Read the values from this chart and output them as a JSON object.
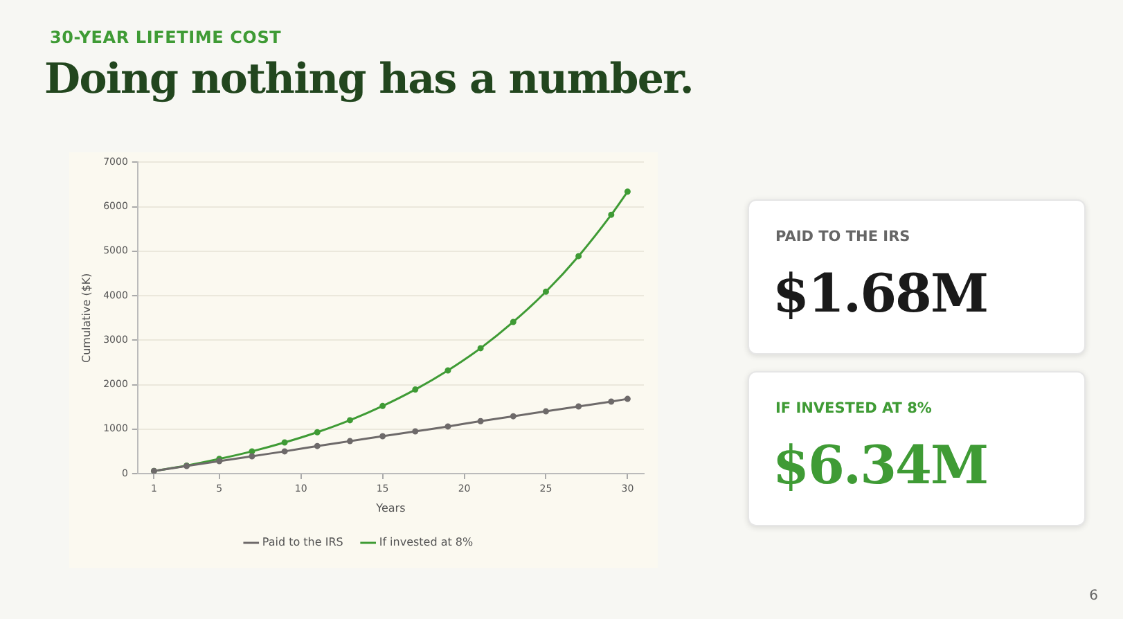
{
  "chart_data": [
    {
      "type": "line",
      "title": "Doing nothing has a number.",
      "subtitle": "30-YEAR LIFETIME COST",
      "xlabel": "Years",
      "ylabel": "Cumulative ($K)",
      "x": [
        1,
        3,
        5,
        7,
        9,
        11,
        13,
        15,
        17,
        19,
        21,
        23,
        25,
        27,
        29,
        30
      ],
      "series": [
        {
          "name": "Paid to the IRS",
          "color": "#6e6a6a",
          "values": [
            60,
            170,
            280,
            390,
            500,
            620,
            730,
            840,
            950,
            1060,
            1180,
            1290,
            1400,
            1510,
            1620,
            1680
          ]
        },
        {
          "name": "If invested at 8%",
          "color": "#3f9b35",
          "values": [
            60,
            180,
            330,
            500,
            700,
            930,
            1200,
            1520,
            1890,
            2320,
            2820,
            3410,
            4090,
            4890,
            5820,
            6340
          ]
        }
      ],
      "xlim": [
        0,
        31
      ],
      "xticks": [
        1,
        5,
        10,
        15,
        20,
        25,
        30
      ],
      "ylim": [
        0,
        7000
      ],
      "yticks": [
        0,
        1000,
        2000,
        3000,
        4000,
        5000,
        6000,
        7000
      ],
      "grid": "y",
      "legend": "bottom",
      "marker": "circle",
      "line_style": "solid",
      "annotations": [
        "6"
      ]
    },
    {
      "type": "other",
      "title": "PAID TO THE IRS",
      "annotations": [
        "$1.68M"
      ],
      "color": "#1a1a1a"
    },
    {
      "type": "other",
      "title": "IF INVESTED AT 8%",
      "annotations": [
        "$6.34M"
      ],
      "color": "#3f9b35"
    }
  ]
}
